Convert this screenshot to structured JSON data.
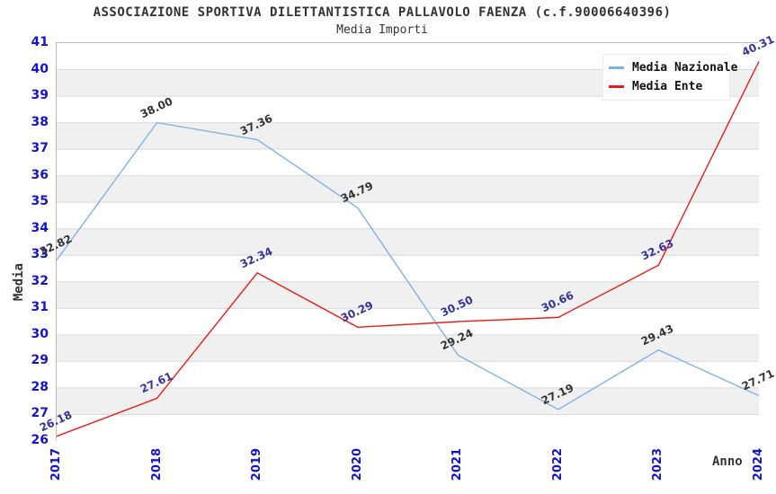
{
  "header": {
    "title": "ASSOCIAZIONE SPORTIVA DILETTANTISTICA PALLAVOLO FAENZA (c.f.90006640396)",
    "subtitle": "Media Importi"
  },
  "axes": {
    "y_title": "Media",
    "x_title": "Anno",
    "tick_color": "#1414cc"
  },
  "legend": {
    "items": [
      {
        "label": "Media Nazionale",
        "color": "#7fb2e5"
      },
      {
        "label": "Media Ente",
        "color": "#ee1a1a"
      }
    ]
  },
  "chart_data": {
    "type": "line",
    "title": "ASSOCIAZIONE SPORTIVA DILETTANTISTICA PALLAVOLO FAENZA (c.f.90006640396)",
    "subtitle": "Media Importi",
    "xlabel": "Anno",
    "ylabel": "Media",
    "categories": [
      "2017",
      "2018",
      "2019",
      "2020",
      "2021",
      "2022",
      "2023",
      "2024"
    ],
    "series": [
      {
        "name": "Media Nazionale",
        "color": "#7fb2e5",
        "label_color": "#333333",
        "values": [
          32.82,
          38.0,
          37.36,
          34.79,
          29.24,
          27.19,
          29.43,
          27.71
        ]
      },
      {
        "name": "Media Ente",
        "color": "#ee1a1a",
        "label_color": "#333399",
        "values": [
          26.18,
          27.61,
          32.34,
          30.29,
          30.5,
          30.66,
          32.63,
          40.31
        ]
      }
    ],
    "ylim": [
      26,
      41
    ],
    "y_tick_step": 1,
    "grid": "horizontal",
    "grid_color": "#d9d9d9",
    "stripe_colors": [
      "#ffffff",
      "#f0f0f0"
    ],
    "legend_position": "top-right"
  }
}
